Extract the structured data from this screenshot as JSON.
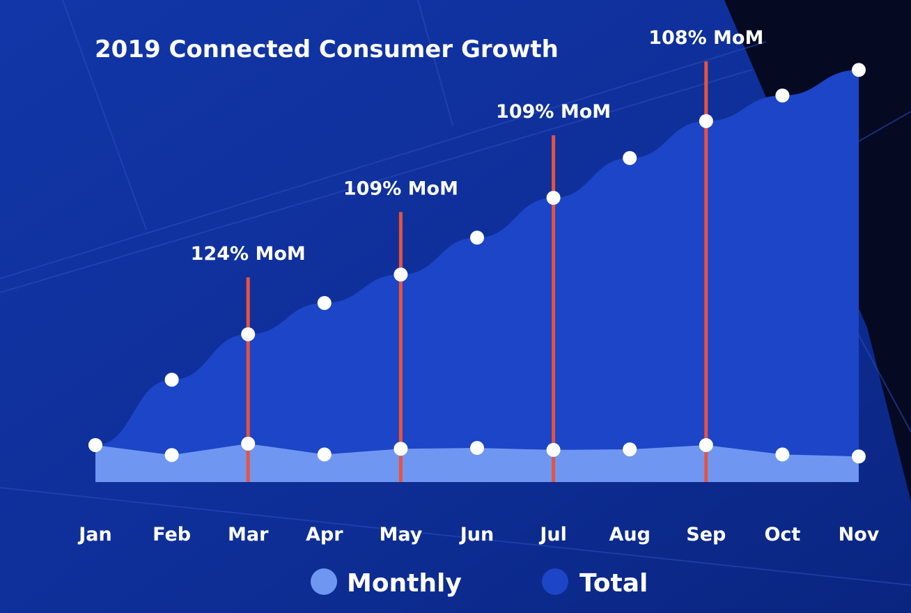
{
  "chart_data": {
    "type": "area",
    "title": "2019 Connected Consumer Growth",
    "categories": [
      "Jan",
      "Feb",
      "Mar",
      "Apr",
      "May",
      "Jun",
      "Jul",
      "Aug",
      "Sep",
      "Oct",
      "Nov"
    ],
    "series": [
      {
        "name": "Monthly",
        "color": "#6f97f2",
        "values": [
          1.3,
          0.95,
          1.35,
          0.97,
          1.17,
          1.2,
          1.13,
          1.15,
          1.3,
          0.97,
          0.9
        ]
      },
      {
        "name": "Total",
        "color": "#1c45c7",
        "values": [
          1.3,
          3.6,
          5.2,
          6.3,
          7.3,
          8.6,
          10.0,
          11.4,
          12.7,
          13.6,
          14.5
        ]
      }
    ],
    "ylim": [
      0,
      15
    ],
    "grid": false,
    "legend_position": "bottom",
    "annotations": [
      {
        "category": "Mar",
        "text": "124% MoM",
        "color": "#e8533d",
        "value": 7.2
      },
      {
        "category": "May",
        "text": "109% MoM",
        "color": "#e8533d",
        "value": 9.5
      },
      {
        "category": "Jul",
        "text": "109% MoM",
        "color": "#e8533d",
        "value": 12.2
      },
      {
        "category": "Sep",
        "text": "108% MoM",
        "color": "#e8533d",
        "value": 14.8
      }
    ],
    "marker_color": "#ffffff"
  }
}
